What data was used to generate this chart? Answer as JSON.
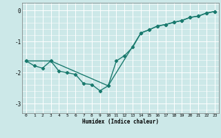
{
  "title": "",
  "xlabel": "Humidex (Indice chaleur)",
  "ylabel": "",
  "bg_color": "#cce8e8",
  "grid_color": "#ffffff",
  "line_color": "#1a7a6e",
  "marker": "D",
  "markersize": 2.2,
  "linewidth": 1.0,
  "xlim": [
    -0.5,
    23.5
  ],
  "ylim": [
    -3.3,
    0.25
  ],
  "yticks": [
    0,
    -1,
    -2,
    -3
  ],
  "xticks": [
    0,
    1,
    2,
    3,
    4,
    5,
    6,
    7,
    8,
    9,
    10,
    11,
    12,
    13,
    14,
    15,
    16,
    17,
    18,
    19,
    20,
    21,
    22,
    23
  ],
  "line1_x": [
    0,
    1,
    2,
    3,
    4,
    5,
    6,
    7,
    8,
    9,
    10,
    11,
    12,
    13,
    14,
    15,
    16,
    17,
    18,
    19,
    20,
    21,
    22,
    23
  ],
  "line1_y": [
    -1.62,
    -1.78,
    -1.85,
    -1.62,
    -1.95,
    -2.0,
    -2.05,
    -2.35,
    -2.38,
    -2.58,
    -2.42,
    -1.62,
    -1.45,
    -1.18,
    -0.72,
    -0.62,
    -0.5,
    -0.45,
    -0.38,
    -0.32,
    -0.22,
    -0.18,
    -0.08,
    -0.03
  ],
  "line2_x": [
    0,
    3,
    10,
    14,
    15,
    16,
    17,
    18,
    19,
    20,
    21,
    22,
    23
  ],
  "line2_y": [
    -1.62,
    -1.62,
    -2.42,
    -0.72,
    -0.62,
    -0.5,
    -0.45,
    -0.38,
    -0.32,
    -0.22,
    -0.18,
    -0.08,
    -0.03
  ]
}
